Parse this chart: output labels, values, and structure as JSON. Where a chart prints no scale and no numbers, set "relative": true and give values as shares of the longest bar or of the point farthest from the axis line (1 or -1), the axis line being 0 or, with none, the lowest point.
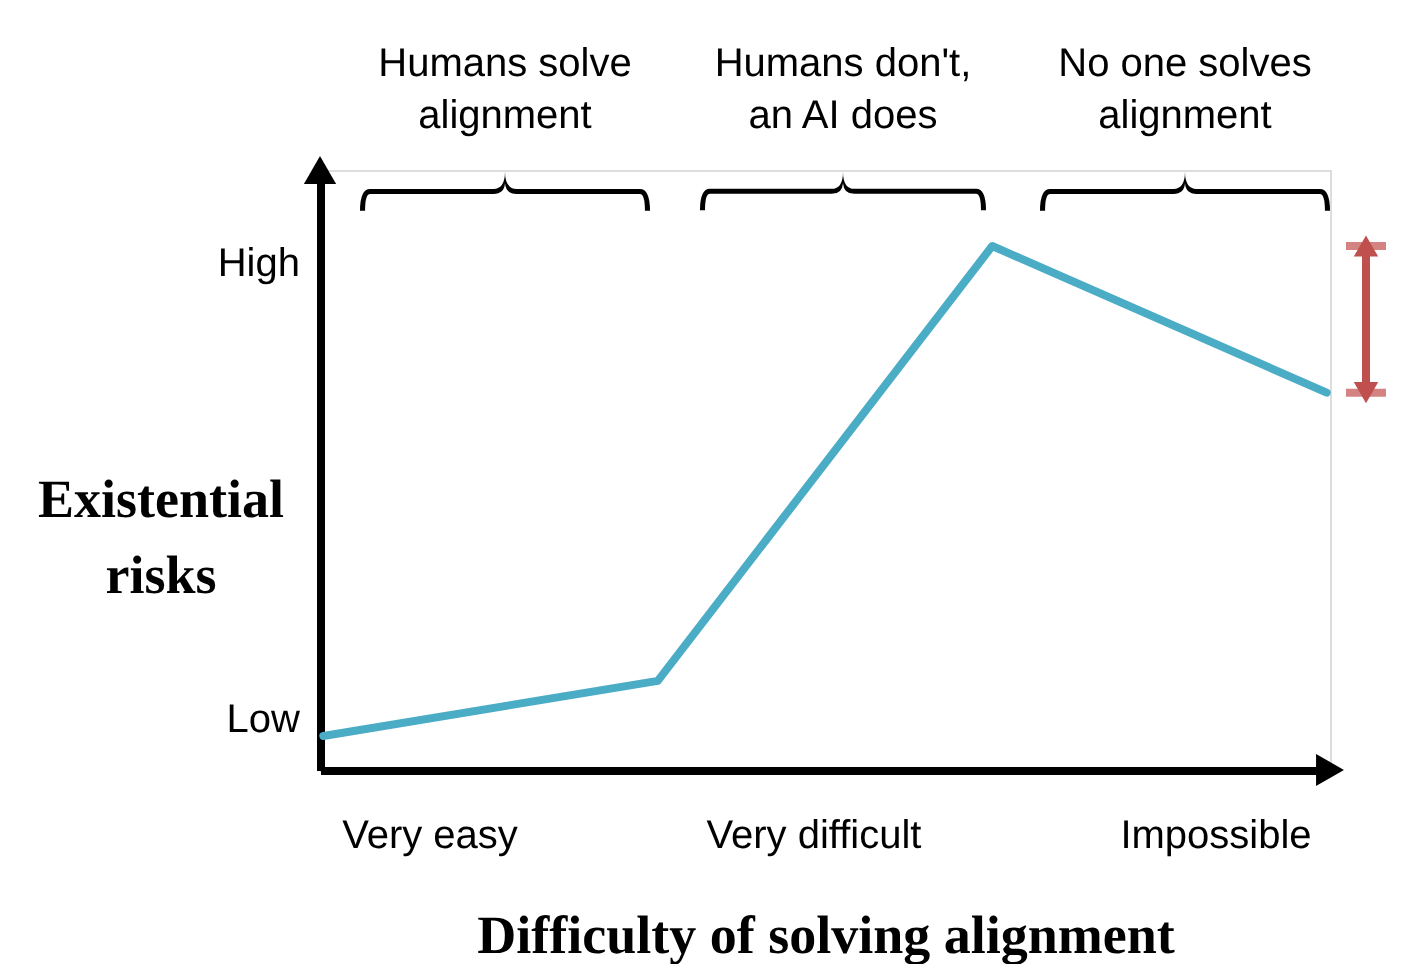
{
  "chart_data": {
    "type": "line",
    "xlabel": "Difficulty of solving alignment",
    "ylabel": "Existential risks",
    "categories": [
      null,
      null,
      null,
      null
    ],
    "relative": true,
    "series": [
      {
        "color": "#4bacc6",
        "values": [
          0.065,
          0.17,
          1,
          0.72
        ]
      }
    ],
    "grid": false,
    "marker": "none",
    "line_style": "solid",
    "annotations": [
      "Humans solve alignment",
      "Humans don't, an AI does",
      "No one solves alignment",
      "Low",
      "High",
      "Very easy",
      "Very difficult",
      "Impossible"
    ]
  }
}
